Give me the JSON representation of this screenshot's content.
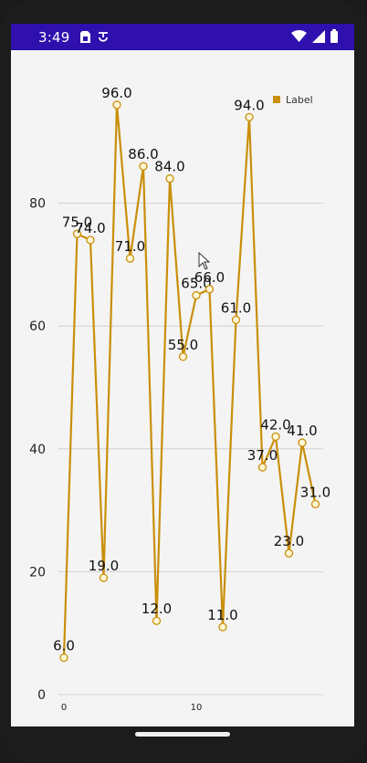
{
  "status_bar": {
    "time": "3:49",
    "left_icons": [
      "sim-card-icon",
      "data-sync-icon"
    ],
    "right_icons": [
      "wifi-icon",
      "signal-icon",
      "battery-icon"
    ],
    "background": "#2f10ae"
  },
  "chart_data": {
    "type": "line",
    "legend": {
      "label": "Label",
      "placement": "top-right"
    },
    "color": "#c98f0a",
    "x": [
      0,
      1,
      2,
      3,
      4,
      5,
      6,
      7,
      8,
      9,
      10,
      11,
      12,
      13,
      14,
      15,
      16,
      17,
      18,
      19
    ],
    "values": [
      6,
      75,
      74,
      19,
      96,
      71,
      86,
      12,
      84,
      55,
      65,
      66,
      11,
      61,
      94,
      37,
      42,
      23,
      41,
      31
    ],
    "value_labels": [
      "6.0",
      "75.0",
      "74.0",
      "19.0",
      "96.0",
      "71.0",
      "86.0",
      "12.0",
      "84.0",
      "55.0",
      "65.0",
      "66.0",
      "11.0",
      "61.0",
      "94.0",
      "37.0",
      "42.0",
      "23.0",
      "41.0",
      "31.0"
    ],
    "y_ticks": [
      "0",
      "20",
      "40",
      "60",
      "80"
    ],
    "x_ticks": [
      "0",
      "10"
    ],
    "ylim": [
      0,
      100
    ],
    "grid": true
  }
}
